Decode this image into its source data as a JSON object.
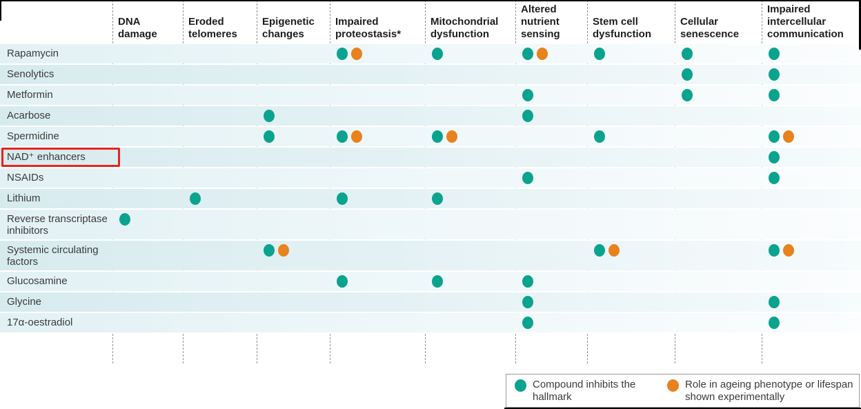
{
  "colors": {
    "inhibits": "#0aa38e",
    "experimental": "#e8821d",
    "highlight_box": "#e3251c",
    "row_tint": "#d7ebef",
    "divider": "#8d8d8d"
  },
  "chart_data": {
    "type": "matrix",
    "columns": [
      "DNA damage",
      "Eroded telomeres",
      "Epigenetic changes",
      "Impaired proteostasis*",
      "Mitochondrial dysfunction",
      "Altered nutrient sensing",
      "Stem cell dysfunction",
      "Cellular senescence",
      "Impaired intercellular communication"
    ],
    "mark_types": {
      "inhibits": "Compound inhibits the hallmark",
      "experimental": "Role in ageing phenotype or lifespan shown experimentally"
    },
    "rows": [
      {
        "label": "Rapamycin",
        "highlighted": false,
        "cells": [
          [],
          [],
          [],
          [
            "inhibits",
            "experimental"
          ],
          [
            "inhibits"
          ],
          [
            "inhibits",
            "experimental"
          ],
          [
            "inhibits"
          ],
          [
            "inhibits"
          ],
          [
            "inhibits"
          ]
        ]
      },
      {
        "label": "Senolytics",
        "highlighted": false,
        "cells": [
          [],
          [],
          [],
          [],
          [],
          [],
          [],
          [
            "inhibits"
          ],
          [
            "inhibits"
          ]
        ]
      },
      {
        "label": "Metformin",
        "highlighted": false,
        "cells": [
          [],
          [],
          [],
          [],
          [],
          [
            "inhibits"
          ],
          [],
          [
            "inhibits"
          ],
          [
            "inhibits"
          ]
        ]
      },
      {
        "label": "Acarbose",
        "highlighted": false,
        "cells": [
          [],
          [],
          [
            "inhibits"
          ],
          [],
          [],
          [
            "inhibits"
          ],
          [],
          [],
          []
        ]
      },
      {
        "label": "Spermidine",
        "highlighted": false,
        "cells": [
          [],
          [],
          [
            "inhibits"
          ],
          [
            "inhibits",
            "experimental"
          ],
          [
            "inhibits",
            "experimental"
          ],
          [],
          [
            "inhibits"
          ],
          [],
          [
            "inhibits",
            "experimental"
          ]
        ]
      },
      {
        "label": "NAD⁺ enhancers",
        "highlighted": true,
        "cells": [
          [],
          [],
          [],
          [],
          [],
          [],
          [],
          [],
          [
            "inhibits"
          ]
        ]
      },
      {
        "label": "NSAIDs",
        "highlighted": false,
        "cells": [
          [],
          [],
          [],
          [],
          [],
          [
            "inhibits"
          ],
          [],
          [],
          [
            "inhibits"
          ]
        ]
      },
      {
        "label": "Lithium",
        "highlighted": false,
        "cells": [
          [],
          [
            "inhibits"
          ],
          [],
          [
            "inhibits"
          ],
          [
            "inhibits"
          ],
          [],
          [],
          [],
          []
        ]
      },
      {
        "label": "Reverse transcriptase inhibitors",
        "highlighted": false,
        "cells": [
          [
            "inhibits"
          ],
          [],
          [],
          [],
          [],
          [],
          [],
          [],
          []
        ]
      },
      {
        "label": "Systemic circulating factors",
        "highlighted": false,
        "cells": [
          [],
          [],
          [
            "inhibits",
            "experimental"
          ],
          [],
          [],
          [],
          [
            "inhibits",
            "experimental"
          ],
          [],
          [
            "inhibits",
            "experimental"
          ]
        ]
      },
      {
        "label": "Glucosamine",
        "highlighted": false,
        "cells": [
          [],
          [],
          [],
          [
            "inhibits"
          ],
          [
            "inhibits"
          ],
          [
            "inhibits"
          ],
          [],
          [],
          []
        ]
      },
      {
        "label": "Glycine",
        "highlighted": false,
        "cells": [
          [],
          [],
          [],
          [],
          [],
          [
            "inhibits"
          ],
          [],
          [],
          [
            "inhibits"
          ]
        ]
      },
      {
        "label": "17α-oestradiol",
        "highlighted": false,
        "cells": [
          [],
          [],
          [],
          [],
          [],
          [
            "inhibits"
          ],
          [],
          [],
          [
            "inhibits"
          ]
        ]
      }
    ]
  },
  "legend": {
    "items": [
      {
        "mark": "inhibits",
        "label": "Compound inhibits the hallmark"
      },
      {
        "mark": "experimental",
        "label": "Role in ageing phenotype or lifespan shown experimentally"
      }
    ]
  }
}
